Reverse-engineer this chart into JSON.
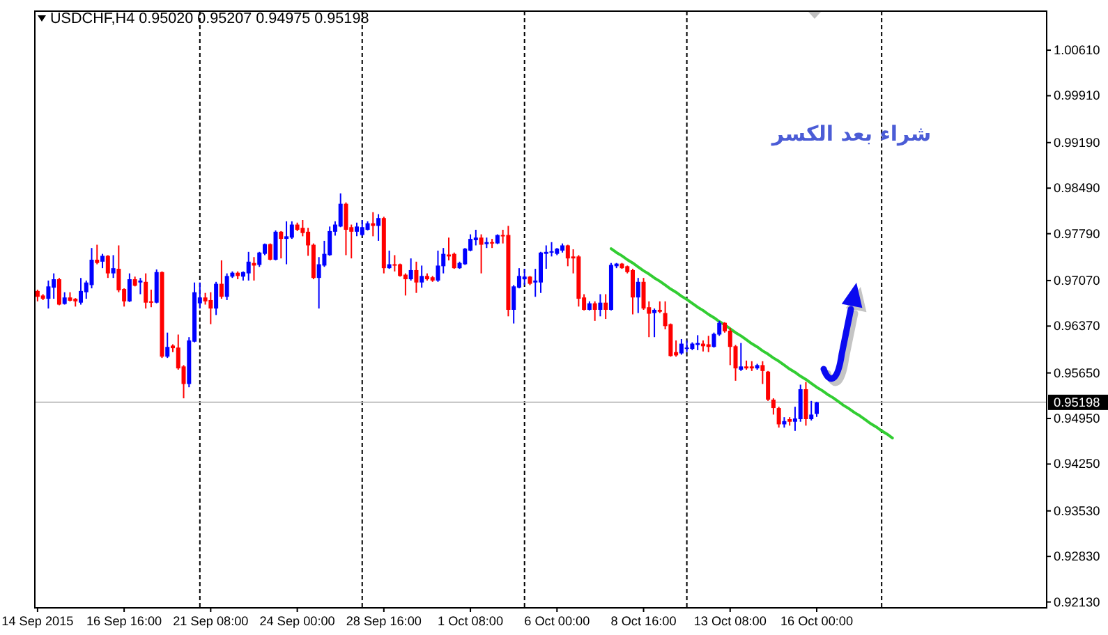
{
  "chart_data": {
    "type": "candlestick",
    "title": "USDCHF,H4 0.95020 0.95207 0.94975 0.95198",
    "categories": [
      "14 Sep 2015",
      null,
      null,
      null,
      null,
      null,
      null,
      null,
      null,
      null,
      null,
      null,
      null,
      null,
      null,
      null,
      "16 Sep 16:00",
      null,
      null,
      null,
      null,
      null,
      null,
      null,
      null,
      null,
      null,
      null,
      null,
      null,
      null,
      null,
      "21 Sep 08:00",
      null,
      null,
      null,
      null,
      null,
      null,
      null,
      null,
      null,
      null,
      null,
      null,
      null,
      null,
      null,
      "24 Sep 00:00",
      null,
      null,
      null,
      null,
      null,
      null,
      null,
      null,
      null,
      null,
      null,
      null,
      null,
      null,
      null,
      "28 Sep 16:00",
      null,
      null,
      null,
      null,
      null,
      null,
      null,
      null,
      null,
      null,
      null,
      null,
      null,
      null,
      null,
      "1 Oct 08:00",
      null,
      null,
      null,
      null,
      null,
      null,
      null,
      null,
      null,
      null,
      null,
      null,
      null,
      null,
      null,
      "6 Oct 00:00",
      null,
      null,
      null,
      null,
      null,
      null,
      null,
      null,
      null,
      null,
      null,
      null,
      null,
      null,
      null,
      "8 Oct 16:00",
      null,
      null,
      null,
      null,
      null,
      null,
      null,
      null,
      null,
      null,
      null,
      null,
      null,
      null,
      null,
      "13 Oct 08:00",
      null,
      null,
      null,
      null,
      null,
      null,
      null,
      null,
      null,
      null,
      null,
      null,
      null,
      null,
      null,
      "16 Oct 00:00",
      null,
      null,
      null,
      null,
      null,
      null,
      null,
      null,
      null,
      null,
      null,
      null,
      null,
      null,
      null,
      null,
      null,
      null,
      null,
      null,
      null,
      null,
      null,
      null,
      null,
      null,
      null,
      null,
      null,
      null,
      null,
      null,
      null,
      null,
      null,
      null,
      null,
      null,
      null,
      null,
      null,
      null
    ],
    "ohlc": [
      [
        0.9691,
        0.9693,
        0.9675,
        0.9682
      ],
      [
        0.9684,
        0.9686,
        0.9677,
        0.9679
      ],
      [
        0.9679,
        0.9707,
        0.9664,
        0.9698
      ],
      [
        0.9696,
        0.9718,
        0.9679,
        0.9709
      ],
      [
        0.9709,
        0.9711,
        0.9669,
        0.967
      ],
      [
        0.9671,
        0.9689,
        0.967,
        0.9681
      ],
      [
        0.9681,
        0.9689,
        0.9675,
        0.9676
      ],
      [
        0.9679,
        0.968,
        0.9667,
        0.9675
      ],
      [
        0.9673,
        0.9711,
        0.967,
        0.9691
      ],
      [
        0.9689,
        0.9707,
        0.9679,
        0.9704
      ],
      [
        0.97,
        0.9757,
        0.9695,
        0.9739
      ],
      [
        0.9739,
        0.9762,
        0.9732,
        0.9734
      ],
      [
        0.9736,
        0.9748,
        0.9726,
        0.9745
      ],
      [
        0.9745,
        0.9746,
        0.9711,
        0.9718
      ],
      [
        0.9718,
        0.9746,
        0.9711,
        0.9726
      ],
      [
        0.9725,
        0.9761,
        0.9689,
        0.9692
      ],
      [
        0.9694,
        0.9695,
        0.9667,
        0.9675
      ],
      [
        0.9675,
        0.9718,
        0.9674,
        0.9709
      ],
      [
        0.9709,
        0.9713,
        0.9698,
        0.9699
      ],
      [
        0.9704,
        0.9711,
        0.9686,
        0.9707
      ],
      [
        0.9705,
        0.9718,
        0.9664,
        0.9673
      ],
      [
        0.9675,
        0.9693,
        0.9666,
        0.9673
      ],
      [
        0.9673,
        0.9724,
        0.9672,
        0.972
      ],
      [
        0.972,
        0.9721,
        0.9588,
        0.959
      ],
      [
        0.959,
        0.9627,
        0.9588,
        0.9605
      ],
      [
        0.9607,
        0.9609,
        0.9597,
        0.9603
      ],
      [
        0.9604,
        0.9624,
        0.957,
        0.9572
      ],
      [
        0.9575,
        0.9577,
        0.9526,
        0.9548
      ],
      [
        0.9548,
        0.962,
        0.9543,
        0.9615
      ],
      [
        0.9613,
        0.9704,
        0.9612,
        0.9689
      ],
      [
        0.9672,
        0.9704,
        0.9664,
        0.9681
      ],
      [
        0.9681,
        0.9688,
        0.967,
        0.9675
      ],
      [
        0.9677,
        0.9689,
        0.964,
        0.9664
      ],
      [
        0.9664,
        0.9705,
        0.9654,
        0.9702
      ],
      [
        0.9702,
        0.9738,
        0.9679,
        0.9682
      ],
      [
        0.9682,
        0.9718,
        0.9677,
        0.9714
      ],
      [
        0.9713,
        0.9721,
        0.9711,
        0.9719
      ],
      [
        0.9719,
        0.9721,
        0.9709,
        0.9714
      ],
      [
        0.9713,
        0.9721,
        0.9707,
        0.972
      ],
      [
        0.9718,
        0.9751,
        0.9707,
        0.9736
      ],
      [
        0.9734,
        0.9743,
        0.9707,
        0.973
      ],
      [
        0.9731,
        0.9751,
        0.9728,
        0.975
      ],
      [
        0.9748,
        0.9764,
        0.9746,
        0.9763
      ],
      [
        0.9763,
        0.9764,
        0.9738,
        0.9739
      ],
      [
        0.9739,
        0.9784,
        0.9738,
        0.9782
      ],
      [
        0.9782,
        0.9783,
        0.9741,
        0.9771
      ],
      [
        0.9771,
        0.9798,
        0.9732,
        0.9775
      ],
      [
        0.9773,
        0.9798,
        0.9771,
        0.9793
      ],
      [
        0.9793,
        0.9796,
        0.9783,
        0.9785
      ],
      [
        0.9788,
        0.98,
        0.9775,
        0.978
      ],
      [
        0.9782,
        0.9788,
        0.9745,
        0.9761
      ],
      [
        0.9762,
        0.9764,
        0.9709,
        0.9711
      ],
      [
        0.9711,
        0.9743,
        0.9664,
        0.9732
      ],
      [
        0.973,
        0.9768,
        0.9728,
        0.9748
      ],
      [
        0.9746,
        0.979,
        0.9745,
        0.9783
      ],
      [
        0.9782,
        0.9798,
        0.9776,
        0.9793
      ],
      [
        0.979,
        0.9841,
        0.9789,
        0.9825
      ],
      [
        0.9825,
        0.9827,
        0.9746,
        0.9785
      ],
      [
        0.9789,
        0.9793,
        0.9741,
        0.9782
      ],
      [
        0.9782,
        0.9796,
        0.9775,
        0.979
      ],
      [
        0.9777,
        0.98,
        0.9775,
        0.9789
      ],
      [
        0.9785,
        0.9798,
        0.9784,
        0.9795
      ],
      [
        0.9795,
        0.9812,
        0.9775,
        0.9791
      ],
      [
        0.9791,
        0.9809,
        0.9768,
        0.9803
      ],
      [
        0.9803,
        0.9805,
        0.9718,
        0.9726
      ],
      [
        0.9726,
        0.9753,
        0.9725,
        0.9732
      ],
      [
        0.9732,
        0.9746,
        0.9721,
        0.973
      ],
      [
        0.9732,
        0.9733,
        0.9713,
        0.9714
      ],
      [
        0.9716,
        0.9718,
        0.9684,
        0.9709
      ],
      [
        0.9709,
        0.9741,
        0.9707,
        0.9723
      ],
      [
        0.9723,
        0.9736,
        0.9688,
        0.9704
      ],
      [
        0.9704,
        0.973,
        0.9696,
        0.9714
      ],
      [
        0.9714,
        0.9718,
        0.9707,
        0.9709
      ],
      [
        0.9712,
        0.9714,
        0.9705,
        0.9707
      ],
      [
        0.9707,
        0.9753,
        0.9705,
        0.973
      ],
      [
        0.9729,
        0.9757,
        0.9718,
        0.9748
      ],
      [
        0.9747,
        0.9773,
        0.9738,
        0.9744
      ],
      [
        0.9748,
        0.975,
        0.9725,
        0.9726
      ],
      [
        0.9726,
        0.9736,
        0.9725,
        0.9734
      ],
      [
        0.9732,
        0.9757,
        0.9731,
        0.9756
      ],
      [
        0.9753,
        0.9778,
        0.9752,
        0.9771
      ],
      [
        0.9769,
        0.9785,
        0.9761,
        0.9773
      ],
      [
        0.9773,
        0.9778,
        0.9718,
        0.9762
      ],
      [
        0.9763,
        0.9773,
        0.9757,
        0.9766
      ],
      [
        0.9766,
        0.9771,
        0.9757,
        0.9764
      ],
      [
        0.9764,
        0.9778,
        0.9763,
        0.9777
      ],
      [
        0.9777,
        0.9785,
        0.9764,
        0.9775
      ],
      [
        0.9777,
        0.9791,
        0.9652,
        0.9662
      ],
      [
        0.9662,
        0.97,
        0.9641,
        0.9698
      ],
      [
        0.9696,
        0.9726,
        0.9695,
        0.9714
      ],
      [
        0.9709,
        0.9725,
        0.97,
        0.9713
      ],
      [
        0.9713,
        0.9714,
        0.97,
        0.9702
      ],
      [
        0.9704,
        0.9725,
        0.9682,
        0.9707
      ],
      [
        0.9704,
        0.9751,
        0.9688,
        0.975
      ],
      [
        0.9748,
        0.9761,
        0.9725,
        0.9751
      ],
      [
        0.975,
        0.9766,
        0.9744,
        0.9752
      ],
      [
        0.9748,
        0.9757,
        0.9746,
        0.9756
      ],
      [
        0.9753,
        0.9764,
        0.975,
        0.9761
      ],
      [
        0.9761,
        0.9762,
        0.9729,
        0.9741
      ],
      [
        0.9744,
        0.9755,
        0.9718,
        0.9741
      ],
      [
        0.9744,
        0.9746,
        0.9667,
        0.9679
      ],
      [
        0.9681,
        0.9686,
        0.9661,
        0.9662
      ],
      [
        0.9662,
        0.9675,
        0.9661,
        0.9672
      ],
      [
        0.9672,
        0.9675,
        0.9645,
        0.9662
      ],
      [
        0.9662,
        0.9686,
        0.9652,
        0.9673
      ],
      [
        0.9673,
        0.9686,
        0.9648,
        0.9662
      ],
      [
        0.9662,
        0.9734,
        0.9661,
        0.9731
      ],
      [
        0.9729,
        0.9734,
        0.9726,
        0.9733
      ],
      [
        0.9733,
        0.9734,
        0.9725,
        0.9726
      ],
      [
        0.9729,
        0.973,
        0.9718,
        0.972
      ],
      [
        0.9723,
        0.9725,
        0.9655,
        0.9681
      ],
      [
        0.9681,
        0.9711,
        0.9657,
        0.9705
      ],
      [
        0.9705,
        0.9711,
        0.9662,
        0.9664
      ],
      [
        0.9666,
        0.9675,
        0.962,
        0.9656
      ],
      [
        0.9657,
        0.9664,
        0.962,
        0.9662
      ],
      [
        0.9662,
        0.9675,
        0.9657,
        0.9659
      ],
      [
        0.9657,
        0.9675,
        0.9632,
        0.9637
      ],
      [
        0.964,
        0.9641,
        0.959,
        0.9591
      ],
      [
        0.9597,
        0.9615,
        0.959,
        0.9592
      ],
      [
        0.9595,
        0.9617,
        0.9593,
        0.961
      ],
      [
        0.9603,
        0.9615,
        0.9597,
        0.9604
      ],
      [
        0.9602,
        0.9612,
        0.96,
        0.961
      ],
      [
        0.9608,
        0.9623,
        0.96,
        0.9611
      ],
      [
        0.961,
        0.9615,
        0.9598,
        0.9606
      ],
      [
        0.9609,
        0.9622,
        0.9597,
        0.9605
      ],
      [
        0.9605,
        0.9627,
        0.9604,
        0.9625
      ],
      [
        0.9624,
        0.9645,
        0.9622,
        0.9642
      ],
      [
        0.9642,
        0.9643,
        0.9627,
        0.9629
      ],
      [
        0.963,
        0.9634,
        0.9577,
        0.9605
      ],
      [
        0.9606,
        0.9608,
        0.9553,
        0.9572
      ],
      [
        0.957,
        0.9611,
        0.9568,
        0.9575
      ],
      [
        0.9575,
        0.9584,
        0.957,
        0.9572
      ],
      [
        0.9575,
        0.9583,
        0.9568,
        0.9572
      ],
      [
        0.9572,
        0.9579,
        0.957,
        0.9577
      ],
      [
        0.9577,
        0.9583,
        0.9548,
        0.9568
      ],
      [
        0.9567,
        0.9568,
        0.9522,
        0.9524
      ],
      [
        0.9524,
        0.9526,
        0.9501,
        0.9511
      ],
      [
        0.9511,
        0.9513,
        0.9481,
        0.9486
      ],
      [
        0.9486,
        0.9497,
        0.9481,
        0.9491
      ],
      [
        0.9494,
        0.9497,
        0.9484,
        0.949
      ],
      [
        0.949,
        0.9513,
        0.9476,
        0.9495
      ],
      [
        0.9494,
        0.9547,
        0.949,
        0.954
      ],
      [
        0.954,
        0.9551,
        0.9484,
        0.9494
      ],
      [
        0.9494,
        0.9522,
        0.9492,
        0.9501
      ],
      [
        0.9502,
        0.95207,
        0.94975,
        0.95198
      ],
      null,
      null,
      null,
      null,
      null,
      null,
      null,
      null,
      null,
      null,
      null,
      null,
      null,
      null,
      null,
      null,
      null,
      null,
      null,
      null,
      null,
      null,
      null,
      null,
      null,
      null,
      null,
      null,
      null,
      null,
      null,
      null,
      null,
      null,
      null,
      null,
      null,
      null,
      null,
      null,
      null,
      null
    ],
    "colors": [
      "#ff0000",
      "#ff0000",
      "#0000ff",
      "#0000ff",
      "#ff0000",
      "#0000ff",
      "#ff0000",
      "#ff0000",
      "#0000ff",
      "#0000ff",
      "#0000ff",
      "#ff0000",
      "#0000ff",
      "#ff0000",
      "#0000ff",
      "#ff0000",
      "#ff0000",
      "#0000ff",
      "#ff0000",
      "#0000ff",
      "#ff0000",
      "#ff0000",
      "#0000ff",
      "#ff0000",
      "#0000ff",
      "#ff0000",
      "#ff0000",
      "#ff0000",
      "#0000ff",
      "#0000ff",
      "#0000ff",
      "#ff0000",
      "#ff0000",
      "#0000ff",
      "#ff0000",
      "#0000ff",
      "#0000ff",
      "#ff0000",
      "#0000ff",
      "#0000ff",
      "#ff0000",
      "#0000ff",
      "#0000ff",
      "#ff0000",
      "#0000ff",
      "#ff0000",
      "#0000ff",
      "#0000ff",
      "#ff0000",
      "#ff0000",
      "#ff0000",
      "#ff0000",
      "#0000ff",
      "#0000ff",
      "#0000ff",
      "#0000ff",
      "#0000ff",
      "#ff0000",
      "#ff0000",
      "#0000ff",
      "#0000ff",
      "#0000ff",
      "#ff0000",
      "#0000ff",
      "#ff0000",
      "#0000ff",
      "#ff0000",
      "#ff0000",
      "#ff0000",
      "#0000ff",
      "#ff0000",
      "#0000ff",
      "#ff0000",
      "#ff0000",
      "#0000ff",
      "#0000ff",
      "#ff0000",
      "#ff0000",
      "#0000ff",
      "#0000ff",
      "#0000ff",
      "#0000ff",
      "#ff0000",
      "#0000ff",
      "#ff0000",
      "#0000ff",
      "#ff0000",
      "#ff0000",
      "#0000ff",
      "#0000ff",
      "#0000ff",
      "#ff0000",
      "#0000ff",
      "#0000ff",
      "#0000ff",
      "#0000ff",
      "#0000ff",
      "#0000ff",
      "#ff0000",
      "#ff0000",
      "#ff0000",
      "#ff0000",
      "#0000ff",
      "#ff0000",
      "#0000ff",
      "#ff0000",
      "#0000ff",
      "#0000ff",
      "#ff0000",
      "#ff0000",
      "#ff0000",
      "#0000ff",
      "#ff0000",
      "#ff0000",
      "#0000ff",
      "#ff0000",
      "#ff0000",
      "#ff0000",
      "#ff0000",
      "#0000ff",
      "#0000ff",
      "#0000ff",
      "#0000ff",
      "#ff0000",
      "#ff0000",
      "#0000ff",
      "#0000ff",
      "#ff0000",
      "#ff0000",
      "#ff0000",
      "#0000ff",
      "#ff0000",
      "#ff0000",
      "#0000ff",
      "#ff0000",
      "#ff0000",
      "#ff0000",
      "#ff0000",
      "#0000ff",
      "#ff0000",
      "#0000ff",
      "#0000ff",
      "#ff0000",
      "#0000ff",
      "#0000ff",
      null,
      null,
      null,
      null,
      null,
      null,
      null,
      null,
      null,
      null,
      null,
      null,
      null,
      null,
      null,
      null,
      null,
      null,
      null,
      null,
      null,
      null,
      null,
      null,
      null,
      null,
      null,
      null,
      null,
      null,
      null,
      null,
      null,
      null,
      null,
      null,
      null,
      null,
      null,
      null,
      null,
      null
    ],
    "series": [
      {
        "type": "line",
        "color": "#32cd32",
        "values": [
          null,
          null,
          null,
          null,
          null,
          null,
          null,
          null,
          null,
          null,
          null,
          null,
          null,
          null,
          null,
          null,
          null,
          null,
          null,
          null,
          null,
          null,
          null,
          null,
          null,
          null,
          null,
          null,
          null,
          null,
          null,
          null,
          null,
          null,
          null,
          null,
          null,
          null,
          null,
          null,
          null,
          null,
          null,
          null,
          null,
          null,
          null,
          null,
          null,
          null,
          null,
          null,
          null,
          null,
          null,
          null,
          null,
          null,
          null,
          null,
          null,
          null,
          null,
          null,
          null,
          null,
          null,
          null,
          null,
          null,
          null,
          null,
          null,
          null,
          null,
          null,
          null,
          null,
          null,
          null,
          null,
          null,
          null,
          null,
          null,
          null,
          null,
          null,
          null,
          null,
          null,
          null,
          null,
          null,
          null,
          null,
          null,
          null,
          null,
          null,
          null,
          null,
          null,
          null,
          null,
          null,
          0.9756,
          0.975,
          0.9745,
          0.9739,
          0.9734,
          0.9728,
          0.9722,
          0.9717,
          0.9711,
          0.9706,
          0.97,
          0.9694,
          0.9689,
          0.9683,
          0.9678,
          0.9672,
          0.9666,
          0.9661,
          0.9655,
          0.965,
          0.9644,
          0.9639,
          0.9633,
          0.9627,
          0.9622,
          0.9616,
          0.961,
          0.9605,
          0.9599,
          0.9594,
          0.9588,
          0.9583,
          0.9577,
          0.9571,
          0.9566,
          0.956,
          0.9555,
          0.9549,
          0.9543,
          0.9538,
          0.9532,
          0.9527,
          0.9521,
          0.9515,
          0.951,
          0.9504,
          0.9499,
          0.9493,
          0.9487,
          0.9482,
          0.9476,
          0.9471,
          0.9465,
          null,
          null,
          null,
          null,
          null,
          null,
          null,
          null,
          null,
          null,
          null,
          null,
          null,
          null,
          null,
          null,
          null,
          null,
          null,
          null,
          null,
          null,
          null,
          null,
          null,
          null,
          null,
          null
        ]
      }
    ],
    "ylim": [
      0.9204,
      1.0121
    ],
    "yticks": [
      {
        "value": 0.9213,
        "label": "0.92130"
      },
      {
        "value": 0.9283,
        "label": "0.92830"
      },
      {
        "value": 0.9353,
        "label": "0.93530"
      },
      {
        "value": 0.9425,
        "label": "0.94250"
      },
      {
        "value": 0.9495,
        "label": "0.94950"
      },
      {
        "value": 0.9565,
        "label": "0.95650"
      },
      {
        "value": 0.9637,
        "label": "0.96370"
      },
      {
        "value": 0.9707,
        "label": "0.97070"
      },
      {
        "value": 0.9779,
        "label": "0.97790"
      },
      {
        "value": 0.9849,
        "label": "0.98490"
      },
      {
        "value": 0.9919,
        "label": "0.99190"
      },
      {
        "value": 0.9991,
        "label": "0.99910"
      },
      {
        "value": 1.0061,
        "label": "1.00610"
      }
    ],
    "ref_lines": [
      {
        "axis": "y",
        "value": 0.95198,
        "label": "0.95198",
        "color": "#c0c0c0"
      }
    ],
    "annotations": [
      "شراء بعد الكسر"
    ]
  }
}
